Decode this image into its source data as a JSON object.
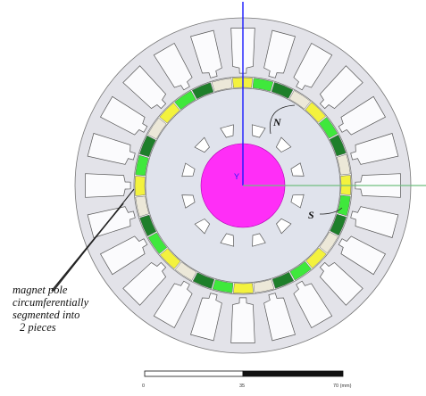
{
  "annotation": {
    "lines": [
      "magnet pole",
      "circumferentially",
      "segmented into",
      "2 pieces"
    ]
  },
  "labels": {
    "north": "N",
    "south": "S"
  },
  "scale_bar": {
    "ticks": [
      "0",
      "35",
      "70 (mm)"
    ]
  },
  "colors": {
    "stator": "#e3e3e9",
    "rotor_core": "#e0e3ec",
    "shaft": "#ff2ef7",
    "airgap": "#ffffff",
    "magnet_bright_green": "#3fe83c",
    "magnet_dark_green": "#1e7f2a",
    "magnet_yellow": "#f3f23e",
    "magnet_spacer": "#ece8d8",
    "axis_blue": "#1a1aff",
    "axis_green": "#6fbf7f",
    "line": "#555555"
  },
  "magnet_ring_colors": [
    "magnet_bright_green",
    "magnet_dark_green",
    "magnet_spacer",
    "magnet_yellow",
    "magnet_bright_green",
    "magnet_dark_green",
    "magnet_spacer",
    "magnet_yellow"
  ]
}
